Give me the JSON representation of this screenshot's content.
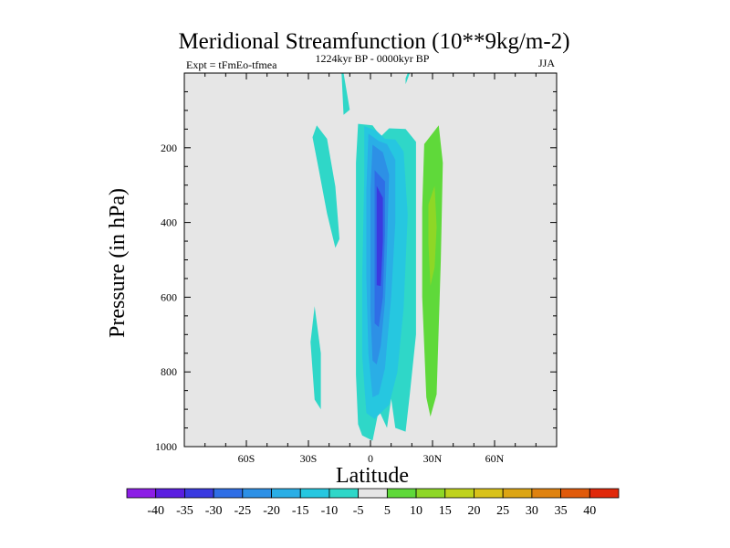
{
  "chart_data": {
    "type": "contour",
    "title": "Meridional Streamfunction (10**9kg/m-2)",
    "left_string": "Expt = tFmEo-tfmea",
    "center_string": "1224kyr BP - 0000kyr BP",
    "right_string": "JJA",
    "xlabel": "Latitude",
    "ylabel": "Pressure (in hPa)",
    "xlim": [
      -90,
      90
    ],
    "ylim": [
      1000,
      0
    ],
    "x_ticks": [
      {
        "value": -60,
        "label": "60S"
      },
      {
        "value": -30,
        "label": "30S"
      },
      {
        "value": 0,
        "label": "0"
      },
      {
        "value": 30,
        "label": "30N"
      },
      {
        "value": 60,
        "label": "60N"
      }
    ],
    "y_ticks": [
      {
        "value": 200,
        "label": "200"
      },
      {
        "value": 400,
        "label": "400"
      },
      {
        "value": 600,
        "label": "600"
      },
      {
        "value": 800,
        "label": "800"
      },
      {
        "value": 1000,
        "label": "1000"
      }
    ],
    "missing_color": "#e6e6e6",
    "colorbar": {
      "labels": [
        "-40",
        "-35",
        "-30",
        "-25",
        "-20",
        "-15",
        "-10",
        "-5",
        "5",
        "10",
        "15",
        "20",
        "25",
        "30",
        "35",
        "40"
      ],
      "colors": [
        "#8c1ee6",
        "#5a1ee0",
        "#3a3ae0",
        "#2f6ee6",
        "#2d90e6",
        "#2aaee6",
        "#26c7e0",
        "#2fd7c8",
        "#e6e6e6",
        "#5fd93a",
        "#8ed726",
        "#bfd21c",
        "#d9c21a",
        "#dca514",
        "#df820f",
        "#e05a0a",
        "#e0280a"
      ]
    },
    "regions": [
      {
        "fill": "#2fd7c8",
        "label": "-5",
        "points": [
          [
            -28,
            172
          ],
          [
            -26,
            140
          ],
          [
            -21,
            176
          ],
          [
            -17,
            304
          ],
          [
            -15,
            444
          ],
          [
            -17,
            468
          ],
          [
            -21,
            376
          ],
          [
            -25,
            258
          ]
        ]
      },
      {
        "fill": "#2fd7c8",
        "label": "-5",
        "points": [
          [
            -29,
            720
          ],
          [
            -27,
            624
          ],
          [
            -24,
            750
          ],
          [
            -24,
            900
          ],
          [
            -27,
            874
          ]
        ]
      },
      {
        "fill": "#2fd7c8",
        "label": "-5",
        "points": [
          [
            -14,
            0
          ],
          [
            -13,
            0
          ],
          [
            -10,
            98
          ],
          [
            -13,
            112
          ]
        ]
      },
      {
        "fill": "#2fd7c8",
        "label": "-5",
        "points": [
          [
            18,
            0
          ],
          [
            19,
            0
          ],
          [
            17,
            30
          ],
          [
            17,
            14
          ]
        ]
      },
      {
        "fill": "#2fd7c8",
        "label": "-5",
        "points": [
          [
            -6,
            136
          ],
          [
            1,
            140
          ],
          [
            5,
            170
          ],
          [
            9,
            148
          ],
          [
            17,
            150
          ],
          [
            22,
            184
          ],
          [
            22,
            410
          ],
          [
            22,
            700
          ],
          [
            19,
            860
          ],
          [
            17,
            960
          ],
          [
            12,
            950
          ],
          [
            10,
            872
          ],
          [
            8,
            950
          ],
          [
            4,
            902
          ],
          [
            1,
            984
          ],
          [
            -4,
            970
          ],
          [
            -6,
            940
          ],
          [
            -7,
            808
          ],
          [
            -7,
            532
          ],
          [
            -7,
            240
          ]
        ]
      },
      {
        "fill": "#26c7e0",
        "label": "-10",
        "points": [
          [
            -3,
            142
          ],
          [
            3,
            155
          ],
          [
            7,
            176
          ],
          [
            12,
            178
          ],
          [
            16,
            210
          ],
          [
            18,
            380
          ],
          [
            16,
            630
          ],
          [
            13,
            800
          ],
          [
            9,
            888
          ],
          [
            2,
            926
          ],
          [
            -2,
            910
          ],
          [
            -4,
            756
          ],
          [
            -4,
            552
          ],
          [
            -3,
            280
          ]
        ]
      },
      {
        "fill": "#2aaee6",
        "label": "-15",
        "points": [
          [
            -1,
            162
          ],
          [
            4,
            182
          ],
          [
            8,
            190
          ],
          [
            12,
            232
          ],
          [
            12,
            400
          ],
          [
            10,
            600
          ],
          [
            7,
            790
          ],
          [
            4,
            860
          ],
          [
            1,
            868
          ],
          [
            -1,
            750
          ],
          [
            -2,
            550
          ],
          [
            -2,
            312
          ]
        ]
      },
      {
        "fill": "#2d90e6",
        "label": "-20",
        "points": [
          [
            1,
            192
          ],
          [
            6,
            212
          ],
          [
            9,
            272
          ],
          [
            8,
            470
          ],
          [
            7,
            612
          ],
          [
            5,
            730
          ],
          [
            3,
            780
          ],
          [
            1,
            770
          ],
          [
            0,
            640
          ],
          [
            0,
            472
          ],
          [
            0,
            312
          ]
        ]
      },
      {
        "fill": "#2f6ee6",
        "label": "-25",
        "points": [
          [
            2,
            260
          ],
          [
            7,
            290
          ],
          [
            7,
            430
          ],
          [
            6,
            600
          ],
          [
            4,
            680
          ],
          [
            2,
            670
          ],
          [
            2,
            560
          ],
          [
            2,
            400
          ]
        ]
      },
      {
        "fill": "#3a3ae0",
        "label": "-30",
        "points": [
          [
            3,
            302
          ],
          [
            6,
            334
          ],
          [
            6,
            450
          ],
          [
            5,
            570
          ],
          [
            3,
            568
          ],
          [
            3,
            450
          ]
        ]
      },
      {
        "fill": "#5fd93a",
        "label": "10",
        "points": [
          [
            26,
            190
          ],
          [
            33,
            140
          ],
          [
            35,
            240
          ],
          [
            34,
            500
          ],
          [
            32,
            860
          ],
          [
            29,
            920
          ],
          [
            27,
            868
          ],
          [
            25,
            600
          ],
          [
            25,
            360
          ]
        ]
      },
      {
        "fill": "#8ed726",
        "label": "15",
        "points": [
          [
            28,
            352
          ],
          [
            31,
            302
          ],
          [
            32,
            412
          ],
          [
            31,
            520
          ],
          [
            29,
            570
          ],
          [
            28,
            456
          ]
        ]
      }
    ]
  }
}
